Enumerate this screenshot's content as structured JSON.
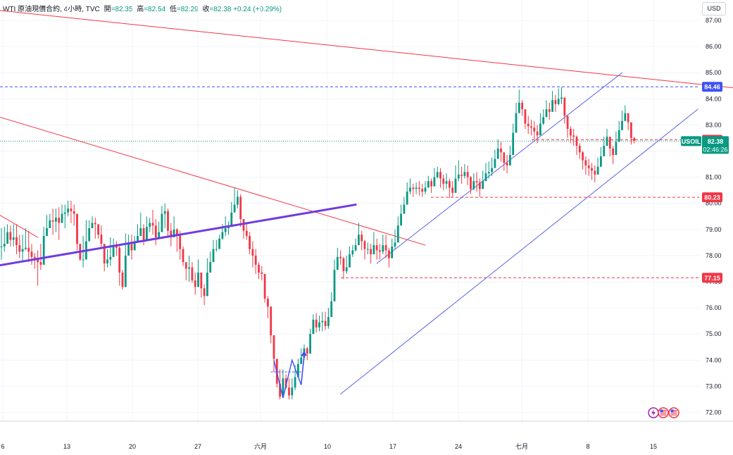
{
  "header": {
    "symbol": "WTI 原油現價合約, 4小時, TVC",
    "open_label": "開",
    "open_value": "=82.35",
    "high_label": "高",
    "high_value": "=82.54",
    "low_label": "低",
    "low_value": "=82.29",
    "close_label": "收",
    "close_value": "=82.38",
    "change_value": "+0.24 (+0.29%)"
  },
  "currency": "USD",
  "colors": {
    "up": "#089981",
    "down": "#f23645",
    "trend_red": "#f23645",
    "channel_blue": "#5b63e6",
    "support_purple": "#6f3ce0",
    "grid": "#f0f3fa"
  },
  "chart_data": {
    "type": "candlestick",
    "interval": "4h",
    "ylim": [
      71.75,
      87.4
    ],
    "y_ticks": [
      "87.00",
      "86.00",
      "85.00",
      "84.00",
      "83.00",
      "82.00",
      "81.00",
      "80.00",
      "79.00",
      "78.00",
      "77.00",
      "76.00",
      "75.00",
      "74.00",
      "73.00",
      "72.00"
    ],
    "x_ticks": [
      "6",
      "13",
      "20",
      "27",
      "六月",
      "10",
      "17",
      "24",
      "七月",
      "8",
      "15"
    ],
    "price_tags": [
      {
        "text": "84.46",
        "value": 84.46,
        "color": "#3f51f5",
        "style": "dashed-line"
      },
      {
        "text": "82.43",
        "value": 82.43,
        "color": "#f23645",
        "style": "dashed-line"
      },
      {
        "text": "80.23",
        "value": 80.23,
        "color": "#f23645",
        "style": "dashed-line"
      },
      {
        "text": "77.15",
        "value": 77.15,
        "color": "#f23645",
        "style": "dashed-line"
      }
    ],
    "last_price": {
      "symbol": "USOIL",
      "value": "82.38",
      "countdown": "02:46:26",
      "color": "#089981"
    },
    "trend_lines": [
      {
        "name": "upper-red-resistance",
        "color": "#f23645",
        "from": {
          "bar": -2,
          "price": 87.4
        },
        "to": {
          "bar": 268,
          "price": 84.1
        }
      },
      {
        "name": "lower-red-resistance",
        "color": "#f23645",
        "from": {
          "bar": -2,
          "price": 83.35
        },
        "to": {
          "bar": 140,
          "price": 78.4
        }
      },
      {
        "name": "short-red-left",
        "color": "#f23645",
        "from": {
          "bar": -2,
          "price": 79.65
        },
        "to": {
          "bar": 12,
          "price": 78.7
        }
      },
      {
        "name": "support-purple",
        "color": "#6f3ce0",
        "from": {
          "bar": -2,
          "price": 77.6
        },
        "to": {
          "bar": 117,
          "price": 79.95
        }
      },
      {
        "name": "channel-lower",
        "color": "#5b63e6",
        "from": {
          "bar": 112,
          "price": 72.7
        },
        "to": {
          "bar": 230,
          "price": 83.6
        }
      },
      {
        "name": "channel-upper",
        "color": "#5b63e6",
        "from": {
          "bar": 124,
          "price": 77.7
        },
        "to": {
          "bar": 205,
          "price": 85.0
        }
      }
    ],
    "candles": [
      [
        78.35,
        79.05,
        77.85,
        78.35
      ],
      [
        78.45,
        79.1,
        78.15,
        78.45
      ],
      [
        78.9,
        79.2,
        78.55,
        78.9
      ],
      [
        78.6,
        79.15,
        78.35,
        78.6
      ],
      [
        78.7,
        79.2,
        78.35,
        78.7
      ],
      [
        78.4,
        79.2,
        78.05,
        78.4
      ],
      [
        78.15,
        78.8,
        77.9,
        78.15
      ],
      [
        78.25,
        78.8,
        77.8,
        78.25
      ],
      [
        78.3,
        79.05,
        78.2,
        78.3
      ],
      [
        78.15,
        78.95,
        77.75,
        78.15
      ],
      [
        77.95,
        78.45,
        77.65,
        77.95
      ],
      [
        77.85,
        78.1,
        77.5,
        77.85
      ],
      [
        77.75,
        78.2,
        76.85,
        77.75
      ],
      [
        77.65,
        78.45,
        77.45,
        77.65
      ],
      [
        78.75,
        79.1,
        78.15,
        78.75
      ],
      [
        79.05,
        79.55,
        78.85,
        79.05
      ],
      [
        79.35,
        79.6,
        79.15,
        79.35
      ],
      [
        79.3,
        79.8,
        78.8,
        79.3
      ],
      [
        79.45,
        79.8,
        78.9,
        79.45
      ],
      [
        79.25,
        79.85,
        78.6,
        79.25
      ],
      [
        79.6,
        79.95,
        79.3,
        79.6
      ],
      [
        79.65,
        79.95,
        79.05,
        79.65
      ],
      [
        79.8,
        80.1,
        79.5,
        79.8
      ],
      [
        79.7,
        80.1,
        79.25,
        79.7
      ],
      [
        79.6,
        79.95,
        79.15,
        79.6
      ],
      [
        78.45,
        78.95,
        78.2,
        78.45
      ],
      [
        77.85,
        78.45,
        77.8,
        77.85
      ],
      [
        77.85,
        78.75,
        77.55,
        77.85
      ],
      [
        78.55,
        79.35,
        78.45,
        78.55
      ],
      [
        79.05,
        79.35,
        78.75,
        79.05
      ],
      [
        79.25,
        79.5,
        79.05,
        79.25
      ],
      [
        79.2,
        79.45,
        78.65,
        79.2
      ],
      [
        78.8,
        79.15,
        78.65,
        78.8
      ],
      [
        78.45,
        79.15,
        78.25,
        78.45
      ],
      [
        77.7,
        78.4,
        77.4,
        77.7
      ],
      [
        77.85,
        78.25,
        77.55,
        77.85
      ],
      [
        77.95,
        78.7,
        77.6,
        77.95
      ],
      [
        78.4,
        78.65,
        78.25,
        78.4
      ],
      [
        78.3,
        78.55,
        78.0,
        78.3
      ],
      [
        77.35,
        78.45,
        76.85,
        77.35
      ],
      [
        76.8,
        77.45,
        76.7,
        76.8
      ],
      [
        78.0,
        78.85,
        77.9,
        78.0
      ],
      [
        78.45,
        78.8,
        78.1,
        78.45
      ],
      [
        78.2,
        78.8,
        77.85,
        78.2
      ],
      [
        78.5,
        78.75,
        78.35,
        78.5
      ],
      [
        78.75,
        79.2,
        78.6,
        78.75
      ],
      [
        79.05,
        79.65,
        78.85,
        79.05
      ],
      [
        78.6,
        79.2,
        78.4,
        78.6
      ],
      [
        79.1,
        79.5,
        78.65,
        79.1
      ],
      [
        79.25,
        79.45,
        78.9,
        79.25
      ],
      [
        79.15,
        79.75,
        78.8,
        79.15
      ],
      [
        78.7,
        79.4,
        78.4,
        78.7
      ],
      [
        78.9,
        79.3,
        78.7,
        78.9
      ],
      [
        79.6,
        79.9,
        79.15,
        79.6
      ],
      [
        79.7,
        80.0,
        79.05,
        79.7
      ],
      [
        78.95,
        79.8,
        78.75,
        78.95
      ],
      [
        78.7,
        79.25,
        78.35,
        78.7
      ],
      [
        79.0,
        79.5,
        78.85,
        79.0
      ],
      [
        78.8,
        79.05,
        78.15,
        78.8
      ],
      [
        78.25,
        78.95,
        77.85,
        78.25
      ],
      [
        77.75,
        78.35,
        77.6,
        77.75
      ],
      [
        77.5,
        77.7,
        77.05,
        77.5
      ],
      [
        77.55,
        78.0,
        77.0,
        77.55
      ],
      [
        77.05,
        77.75,
        76.95,
        77.05
      ],
      [
        76.8,
        77.35,
        76.5,
        76.8
      ],
      [
        77.35,
        77.85,
        76.95,
        77.35
      ],
      [
        76.75,
        77.35,
        76.4,
        76.75
      ],
      [
        76.45,
        76.9,
        76.1,
        76.45
      ],
      [
        77.35,
        77.9,
        77.15,
        77.35
      ],
      [
        77.75,
        78.15,
        77.5,
        77.75
      ],
      [
        78.25,
        78.6,
        78.0,
        78.25
      ],
      [
        78.25,
        78.6,
        78.15,
        78.25
      ],
      [
        78.65,
        78.8,
        78.35,
        78.65
      ],
      [
        78.9,
        79.2,
        78.6,
        78.9
      ],
      [
        79.05,
        79.5,
        78.75,
        79.05
      ],
      [
        79.1,
        79.3,
        78.8,
        79.1
      ],
      [
        79.65,
        80.05,
        79.35,
        79.65
      ],
      [
        79.95,
        80.6,
        79.7,
        79.95
      ],
      [
        80.25,
        80.5,
        79.8,
        80.25
      ],
      [
        79.4,
        80.35,
        79.1,
        79.4
      ],
      [
        78.95,
        79.4,
        78.65,
        78.95
      ],
      [
        78.75,
        79.2,
        78.6,
        78.75
      ],
      [
        78.25,
        78.9,
        78.05,
        78.25
      ],
      [
        78.0,
        78.55,
        77.55,
        78.0
      ],
      [
        77.65,
        78.25,
        77.3,
        77.65
      ],
      [
        77.35,
        77.75,
        77.1,
        77.35
      ],
      [
        77.3,
        77.6,
        77.05,
        77.3
      ],
      [
        76.35,
        77.25,
        76.2,
        76.35
      ],
      [
        76.05,
        76.45,
        75.6,
        76.05
      ],
      [
        74.95,
        76.0,
        74.65,
        74.95
      ],
      [
        74.05,
        74.55,
        73.55,
        74.05
      ],
      [
        73.1,
        73.8,
        72.95,
        73.1
      ],
      [
        72.6,
        73.65,
        72.5,
        72.6
      ],
      [
        73.3,
        73.65,
        72.75,
        73.3
      ],
      [
        72.95,
        73.45,
        72.9,
        72.95
      ],
      [
        72.65,
        73.3,
        72.5,
        72.65
      ],
      [
        72.95,
        73.3,
        72.5,
        72.95
      ],
      [
        73.35,
        73.8,
        72.85,
        73.35
      ],
      [
        73.85,
        74.05,
        73.6,
        73.85
      ],
      [
        74.1,
        74.45,
        73.9,
        74.1
      ],
      [
        74.45,
        74.6,
        74.0,
        74.45
      ],
      [
        74.25,
        74.5,
        74.0,
        74.25
      ],
      [
        75.0,
        75.2,
        74.4,
        75.0
      ],
      [
        75.55,
        75.75,
        75.15,
        75.55
      ],
      [
        75.25,
        75.8,
        75.05,
        75.25
      ],
      [
        75.45,
        75.7,
        75.1,
        75.45
      ],
      [
        75.5,
        75.85,
        75.1,
        75.5
      ],
      [
        75.3,
        75.85,
        75.15,
        75.3
      ],
      [
        75.65,
        76.0,
        75.2,
        75.65
      ],
      [
        76.25,
        76.6,
        75.95,
        76.25
      ],
      [
        77.45,
        77.85,
        77.2,
        77.45
      ],
      [
        77.95,
        78.3,
        77.8,
        77.95
      ],
      [
        77.9,
        78.2,
        77.65,
        77.9
      ],
      [
        77.4,
        77.95,
        77.1,
        77.4
      ],
      [
        77.55,
        78.0,
        77.3,
        77.55
      ],
      [
        78.05,
        78.35,
        77.7,
        78.05
      ],
      [
        78.2,
        78.4,
        77.95,
        78.2
      ],
      [
        78.4,
        78.65,
        78.15,
        78.4
      ],
      [
        78.8,
        79.25,
        78.65,
        78.8
      ],
      [
        78.55,
        78.95,
        78.2,
        78.55
      ],
      [
        78.25,
        78.6,
        77.85,
        78.25
      ],
      [
        78.25,
        78.5,
        78.05,
        78.25
      ],
      [
        78.05,
        78.45,
        77.7,
        78.05
      ],
      [
        78.4,
        78.9,
        78.15,
        78.4
      ],
      [
        78.2,
        78.65,
        77.85,
        78.2
      ],
      [
        78.15,
        78.45,
        77.85,
        78.15
      ],
      [
        78.4,
        78.8,
        78.05,
        78.4
      ],
      [
        78.2,
        78.8,
        77.9,
        78.2
      ],
      [
        77.9,
        78.3,
        77.55,
        77.9
      ],
      [
        78.35,
        78.65,
        77.95,
        78.35
      ],
      [
        78.5,
        79.0,
        78.25,
        78.5
      ],
      [
        79.15,
        79.5,
        78.95,
        79.15
      ],
      [
        79.6,
        79.95,
        79.4,
        79.6
      ],
      [
        79.95,
        80.25,
        79.65,
        79.95
      ],
      [
        80.45,
        80.8,
        80.1,
        80.45
      ],
      [
        80.6,
        80.95,
        80.35,
        80.6
      ],
      [
        80.55,
        80.75,
        80.25,
        80.55
      ],
      [
        80.6,
        80.8,
        80.35,
        80.6
      ],
      [
        80.55,
        80.85,
        80.3,
        80.55
      ],
      [
        80.45,
        80.75,
        80.25,
        80.45
      ],
      [
        80.6,
        80.85,
        80.35,
        80.6
      ],
      [
        80.85,
        81.05,
        80.65,
        80.85
      ],
      [
        80.65,
        80.95,
        80.4,
        80.65
      ],
      [
        81.0,
        81.35,
        80.75,
        81.0
      ],
      [
        81.2,
        81.4,
        80.95,
        81.2
      ],
      [
        80.95,
        81.35,
        80.6,
        80.95
      ],
      [
        80.75,
        81.1,
        80.5,
        80.75
      ],
      [
        80.85,
        81.15,
        80.55,
        80.85
      ],
      [
        80.6,
        80.95,
        80.2,
        80.6
      ],
      [
        80.4,
        80.85,
        80.25,
        80.4
      ],
      [
        80.95,
        81.45,
        80.75,
        80.95
      ],
      [
        81.1,
        81.65,
        80.85,
        81.1
      ],
      [
        81.05,
        81.4,
        80.75,
        81.05
      ],
      [
        81.2,
        81.5,
        80.95,
        81.2
      ],
      [
        81.0,
        81.45,
        80.7,
        81.0
      ],
      [
        80.55,
        81.05,
        80.35,
        80.55
      ],
      [
        80.85,
        81.15,
        80.5,
        80.85
      ],
      [
        80.8,
        81.2,
        80.45,
        80.8
      ],
      [
        80.55,
        80.95,
        80.25,
        80.55
      ],
      [
        80.85,
        81.25,
        80.6,
        80.85
      ],
      [
        81.15,
        81.55,
        80.85,
        81.15
      ],
      [
        81.2,
        81.6,
        80.95,
        81.2
      ],
      [
        81.35,
        81.75,
        81.05,
        81.35
      ],
      [
        81.7,
        82.05,
        81.5,
        81.7
      ],
      [
        82.1,
        82.45,
        81.85,
        82.1
      ],
      [
        81.95,
        82.35,
        81.6,
        81.95
      ],
      [
        81.55,
        81.95,
        81.25,
        81.55
      ],
      [
        81.45,
        81.85,
        81.15,
        81.45
      ],
      [
        81.85,
        82.2,
        81.6,
        81.85
      ],
      [
        82.7,
        83.05,
        82.45,
        82.7
      ],
      [
        83.45,
        83.85,
        83.25,
        83.45
      ],
      [
        83.85,
        84.35,
        83.65,
        83.85
      ],
      [
        83.6,
        83.95,
        83.35,
        83.6
      ],
      [
        83.05,
        83.5,
        82.85,
        83.05
      ],
      [
        82.95,
        83.35,
        82.65,
        82.95
      ],
      [
        82.9,
        83.2,
        82.6,
        82.9
      ],
      [
        82.75,
        83.15,
        82.45,
        82.75
      ],
      [
        82.6,
        83.0,
        82.3,
        82.6
      ],
      [
        83.05,
        83.45,
        82.85,
        83.05
      ],
      [
        83.3,
        83.6,
        83.0,
        83.3
      ],
      [
        83.6,
        83.95,
        83.35,
        83.6
      ],
      [
        83.5,
        83.85,
        83.2,
        83.5
      ],
      [
        83.95,
        84.3,
        83.7,
        83.95
      ],
      [
        83.8,
        84.15,
        83.5,
        83.8
      ],
      [
        84.0,
        84.4,
        83.75,
        84.0
      ],
      [
        84.05,
        84.45,
        83.8,
        84.05
      ],
      [
        83.35,
        83.85,
        83.05,
        83.35
      ],
      [
        82.85,
        83.2,
        82.5,
        82.85
      ],
      [
        82.6,
        82.95,
        82.3,
        82.6
      ],
      [
        82.55,
        82.85,
        82.2,
        82.55
      ],
      [
        82.2,
        82.6,
        81.85,
        82.2
      ],
      [
        81.95,
        82.3,
        81.7,
        81.95
      ],
      [
        81.65,
        82.0,
        81.3,
        81.65
      ],
      [
        81.45,
        81.8,
        81.1,
        81.45
      ],
      [
        81.35,
        81.7,
        81.05,
        81.35
      ],
      [
        81.25,
        81.55,
        80.9,
        81.25
      ],
      [
        81.1,
        81.45,
        80.8,
        81.1
      ],
      [
        81.4,
        81.75,
        81.15,
        81.4
      ],
      [
        81.8,
        82.15,
        81.5,
        81.8
      ],
      [
        82.2,
        82.55,
        81.95,
        82.2
      ],
      [
        82.55,
        82.85,
        82.25,
        82.55
      ],
      [
        82.1,
        82.45,
        81.8,
        82.1
      ],
      [
        81.85,
        82.2,
        81.5,
        81.85
      ],
      [
        82.35,
        82.75,
        82.05,
        82.35
      ],
      [
        82.8,
        83.15,
        82.5,
        82.8
      ],
      [
        83.15,
        83.55,
        82.9,
        83.15
      ],
      [
        83.45,
        83.75,
        83.2,
        83.45
      ],
      [
        83.1,
        83.45,
        82.8,
        83.1
      ],
      [
        82.5,
        82.9,
        82.25,
        82.5
      ],
      [
        82.38,
        82.54,
        82.29,
        82.38
      ]
    ]
  },
  "badges": [
    {
      "icon": "flash-icon",
      "color": "#9c27b0"
    },
    {
      "icon": "us-flag-icon",
      "color": "#f23645"
    },
    {
      "icon": "us-flag-icon",
      "color": "#f23645"
    }
  ]
}
